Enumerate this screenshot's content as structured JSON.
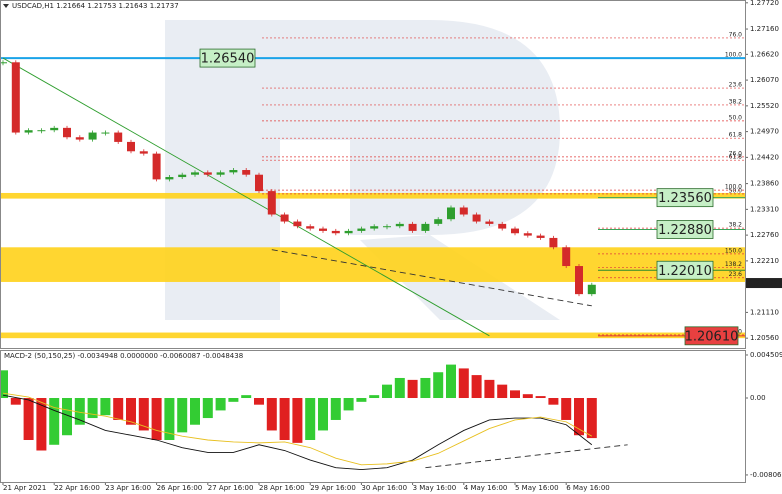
{
  "chart_data": {
    "type": "candlestick",
    "title": "USDCAD,H1 1.21664 1.21753 1.21643 1.21737",
    "categories": [
      "21 Apr 2021",
      null,
      null,
      null,
      "22 Apr 16:00",
      null,
      null,
      null,
      "23 Apr 16:00",
      null,
      null,
      null,
      "26 Apr 16:00",
      null,
      null,
      null,
      "27 Apr 16:00",
      null,
      null,
      null,
      "28 Apr 16:00",
      null,
      null,
      null,
      "29 Apr 16:00",
      null,
      null,
      null,
      "30 Apr 16:00",
      null,
      null,
      null,
      "3 May 16:00",
      null,
      null,
      null,
      "4 May 16:00",
      null,
      null,
      null,
      "5 May 16:00",
      null,
      null,
      null,
      "6 May 16:00",
      null,
      null
    ],
    "series": [
      {
        "name": "USDCAD",
        "up_color": "#2e9e2e",
        "down_color": "#d42a2a",
        "values": [
          1.2645,
          1.2495,
          1.25,
          1.25,
          1.2505,
          1.2485,
          1.248,
          1.2495,
          1.2495,
          1.2475,
          1.2455,
          1.245,
          1.2395,
          1.24,
          1.2405,
          1.241,
          1.2405,
          1.241,
          1.2415,
          1.2405,
          1.237,
          1.232,
          1.2305,
          1.2295,
          1.229,
          1.2285,
          1.228,
          1.2285,
          1.229,
          1.2295,
          1.2295,
          1.23,
          1.2285,
          1.23,
          1.231,
          1.2335,
          1.232,
          1.2305,
          1.23,
          1.229,
          1.228,
          1.2275,
          1.227,
          1.225,
          1.221,
          1.215,
          1.217
        ]
      }
    ],
    "current_price": {
      "value": 1.21737,
      "label": "1.21737"
    },
    "ylim": [
      1.2035,
      1.2778
    ],
    "yticks": [
      {
        "value": 1.2772,
        "label": "1.27720"
      },
      {
        "value": 1.2716,
        "label": "1.27160"
      },
      {
        "value": 1.2662,
        "label": "1.26620"
      },
      {
        "value": 1.2607,
        "label": "1.26070"
      },
      {
        "value": 1.2552,
        "label": "1.25520"
      },
      {
        "value": 1.2497,
        "label": "1.24970"
      },
      {
        "value": 1.2442,
        "label": "1.24420"
      },
      {
        "value": 1.2386,
        "label": "1.23860"
      },
      {
        "value": 1.2331,
        "label": "1.23310"
      },
      {
        "value": 1.2276,
        "label": "1.22760"
      },
      {
        "value": 1.2221,
        "label": "1.22210"
      },
      {
        "value": 1.2111,
        "label": "1.21110"
      },
      {
        "value": 1.2056,
        "label": "1.20560"
      }
    ],
    "levels": [
      {
        "value": 1.2654,
        "label": "1.26540",
        "color": "#1aa3e8",
        "label_bg": "#c6efc6",
        "text_color": "#145214"
      },
      {
        "value": 1.2356,
        "label": "1.23560",
        "color": "#3aa55a",
        "label_bg": "#c6efc6",
        "text_color": "#145214"
      },
      {
        "value": 1.2288,
        "label": "1.22880",
        "color": "#3aa55a",
        "label_bg": "#c6efc6",
        "text_color": "#145214"
      },
      {
        "value": 1.2201,
        "label": "1.22010",
        "color": "#2b8a2b",
        "label_bg": "#c6efc6",
        "text_color": "#145214"
      },
      {
        "value": 1.2061,
        "label": "1.20610",
        "color": "#e03030",
        "label_bg": "#e84040",
        "text_color": "#ffffff"
      }
    ],
    "zones": [
      {
        "from": 1.2366,
        "to": 1.2354
      },
      {
        "from": 1.225,
        "to": 1.2176
      },
      {
        "from": 1.2068,
        "to": 1.2056
      }
    ],
    "zone_color": "#ffd21a",
    "fib_upper": [
      {
        "value": 1.2697,
        "label": "76.0"
      },
      {
        "value": 1.2654,
        "label": "100.0"
      },
      {
        "value": 1.259,
        "label": "23.6"
      },
      {
        "value": 1.2554,
        "label": "38.2"
      },
      {
        "value": 1.252,
        "label": "50.0"
      },
      {
        "value": 1.2483,
        "label": "61.8"
      },
      {
        "value": 1.2443,
        "label": "76.0"
      },
      {
        "value": 1.2436,
        "label": "61.8"
      },
      {
        "value": 1.2372,
        "label": "100.0"
      },
      {
        "value": 1.2364,
        "label": "50.0"
      }
    ],
    "fib_lower": [
      {
        "value": 1.2291,
        "label": "38.2"
      },
      {
        "value": 1.2236,
        "label": "150.0"
      },
      {
        "value": 1.2207,
        "label": "138.2"
      },
      {
        "value": 1.2185,
        "label": "23.6"
      },
      {
        "value": 1.2063,
        "label": "0.0"
      }
    ],
    "fib_color": "#e03a3a",
    "trendlines": [
      {
        "x": [
          0,
          38
        ],
        "y": [
          1.2654,
          1.2061
        ],
        "color": "#2e9e2e",
        "dashed": false
      },
      {
        "x": [
          21,
          46
        ],
        "y": [
          1.2245,
          1.2125
        ],
        "color": "#333333",
        "dashed": true
      }
    ],
    "macd": {
      "title": "MACD-2 (50,150,25) -0.0034948 0.0000000 -0.0060087 -0.0048438",
      "ylim": [
        -0.0088,
        0.00503
      ],
      "yticks": [
        {
          "value": 0.004509,
          "label": "0.0045090"
        },
        {
          "value": 0,
          "label": "0.00"
        },
        {
          "value": -0.00806,
          "label": "-0.008060"
        }
      ],
      "histogram": [
        0.0029,
        -0.0007,
        -0.0044,
        -0.0055,
        -0.0049,
        -0.0039,
        -0.0028,
        -0.0021,
        -0.0018,
        -0.0023,
        -0.0028,
        -0.0034,
        -0.0044,
        -0.0044,
        -0.0036,
        -0.0028,
        -0.0021,
        -0.0013,
        -0.0004,
        0.0003,
        -0.0007,
        -0.0034,
        -0.0044,
        -0.0047,
        -0.0044,
        -0.0034,
        -0.0023,
        -0.0013,
        -0.0004,
        0.0003,
        0.0014,
        0.0021,
        0.0019,
        0.0021,
        0.0027,
        0.0035,
        0.0031,
        0.0024,
        0.0019,
        0.0014,
        0.0008,
        0.0004,
        0.0002,
        -0.0007,
        -0.0023,
        -0.0039,
        -0.0042
      ],
      "up_color": "#33cc33",
      "down_color": "#e02020",
      "line_x": [
        0,
        2,
        4,
        6,
        8,
        10,
        12,
        14,
        16,
        18,
        20,
        22,
        24,
        26,
        28,
        30,
        32,
        34,
        36,
        38,
        40,
        42,
        44,
        46
      ],
      "main_line": {
        "color": "#111111",
        "values": [
          0.0003,
          -0.0002,
          -0.0013,
          -0.0023,
          -0.0034,
          -0.0039,
          -0.0044,
          -0.0052,
          -0.0057,
          -0.0057,
          -0.0049,
          -0.0055,
          -0.0065,
          -0.0073,
          -0.0075,
          -0.0073,
          -0.0065,
          -0.0049,
          -0.0034,
          -0.0023,
          -0.0021,
          -0.0021,
          -0.0028,
          -0.0049
        ]
      },
      "signal_line": {
        "color": "#e8c020",
        "values": [
          0.0005,
          0.0001,
          -0.001,
          -0.0015,
          -0.0019,
          -0.0025,
          -0.0034,
          -0.004,
          -0.0044,
          -0.0046,
          -0.0047,
          -0.0046,
          -0.0052,
          -0.0063,
          -0.007,
          -0.0069,
          -0.0066,
          -0.0058,
          -0.0045,
          -0.0032,
          -0.0023,
          -0.002,
          -0.0025,
          -0.004
        ]
      },
      "trendline": {
        "x": [
          33,
          48.8
        ],
        "y": [
          -0.0073,
          -0.0049
        ]
      }
    }
  }
}
